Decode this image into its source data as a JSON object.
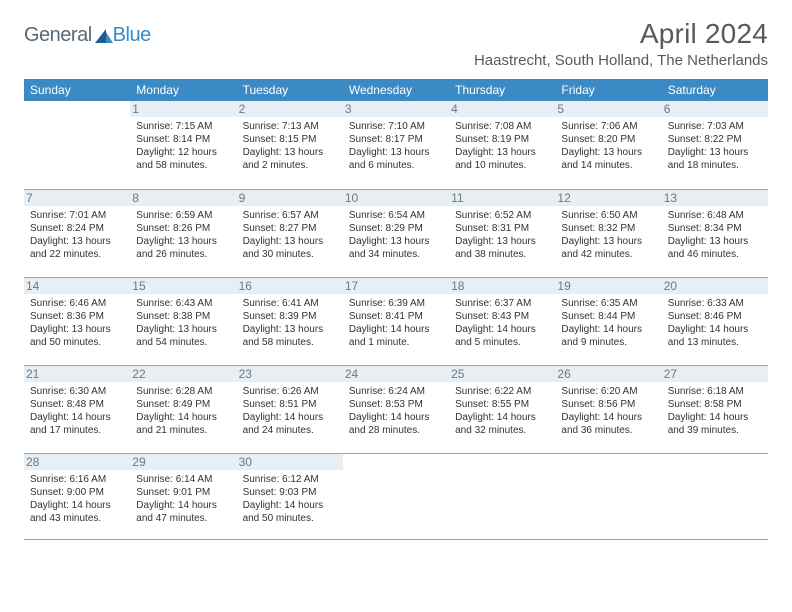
{
  "logo": {
    "textLeft": "General",
    "textRight": "Blue",
    "shapeColor": "#1c5c94"
  },
  "title": "April 2024",
  "location": "Haastrecht, South Holland, The Netherlands",
  "colors": {
    "headerBg": "#3b8ac4",
    "headerText": "#ffffff",
    "dayStripBg": "#e7eef4",
    "dayNumText": "#6c7a84",
    "cellBorder": "#8aa9bf",
    "bodyText": "#333333",
    "titleText": "#555b60"
  },
  "weekdays": [
    "Sunday",
    "Monday",
    "Tuesday",
    "Wednesday",
    "Thursday",
    "Friday",
    "Saturday"
  ],
  "weeks": [
    [
      {
        "n": "",
        "sunrise": "",
        "sunset": "",
        "daylight": ""
      },
      {
        "n": "1",
        "sunrise": "Sunrise: 7:15 AM",
        "sunset": "Sunset: 8:14 PM",
        "daylight": "Daylight: 12 hours and 58 minutes."
      },
      {
        "n": "2",
        "sunrise": "Sunrise: 7:13 AM",
        "sunset": "Sunset: 8:15 PM",
        "daylight": "Daylight: 13 hours and 2 minutes."
      },
      {
        "n": "3",
        "sunrise": "Sunrise: 7:10 AM",
        "sunset": "Sunset: 8:17 PM",
        "daylight": "Daylight: 13 hours and 6 minutes."
      },
      {
        "n": "4",
        "sunrise": "Sunrise: 7:08 AM",
        "sunset": "Sunset: 8:19 PM",
        "daylight": "Daylight: 13 hours and 10 minutes."
      },
      {
        "n": "5",
        "sunrise": "Sunrise: 7:06 AM",
        "sunset": "Sunset: 8:20 PM",
        "daylight": "Daylight: 13 hours and 14 minutes."
      },
      {
        "n": "6",
        "sunrise": "Sunrise: 7:03 AM",
        "sunset": "Sunset: 8:22 PM",
        "daylight": "Daylight: 13 hours and 18 minutes."
      }
    ],
    [
      {
        "n": "7",
        "sunrise": "Sunrise: 7:01 AM",
        "sunset": "Sunset: 8:24 PM",
        "daylight": "Daylight: 13 hours and 22 minutes."
      },
      {
        "n": "8",
        "sunrise": "Sunrise: 6:59 AM",
        "sunset": "Sunset: 8:26 PM",
        "daylight": "Daylight: 13 hours and 26 minutes."
      },
      {
        "n": "9",
        "sunrise": "Sunrise: 6:57 AM",
        "sunset": "Sunset: 8:27 PM",
        "daylight": "Daylight: 13 hours and 30 minutes."
      },
      {
        "n": "10",
        "sunrise": "Sunrise: 6:54 AM",
        "sunset": "Sunset: 8:29 PM",
        "daylight": "Daylight: 13 hours and 34 minutes."
      },
      {
        "n": "11",
        "sunrise": "Sunrise: 6:52 AM",
        "sunset": "Sunset: 8:31 PM",
        "daylight": "Daylight: 13 hours and 38 minutes."
      },
      {
        "n": "12",
        "sunrise": "Sunrise: 6:50 AM",
        "sunset": "Sunset: 8:32 PM",
        "daylight": "Daylight: 13 hours and 42 minutes."
      },
      {
        "n": "13",
        "sunrise": "Sunrise: 6:48 AM",
        "sunset": "Sunset: 8:34 PM",
        "daylight": "Daylight: 13 hours and 46 minutes."
      }
    ],
    [
      {
        "n": "14",
        "sunrise": "Sunrise: 6:46 AM",
        "sunset": "Sunset: 8:36 PM",
        "daylight": "Daylight: 13 hours and 50 minutes."
      },
      {
        "n": "15",
        "sunrise": "Sunrise: 6:43 AM",
        "sunset": "Sunset: 8:38 PM",
        "daylight": "Daylight: 13 hours and 54 minutes."
      },
      {
        "n": "16",
        "sunrise": "Sunrise: 6:41 AM",
        "sunset": "Sunset: 8:39 PM",
        "daylight": "Daylight: 13 hours and 58 minutes."
      },
      {
        "n": "17",
        "sunrise": "Sunrise: 6:39 AM",
        "sunset": "Sunset: 8:41 PM",
        "daylight": "Daylight: 14 hours and 1 minute."
      },
      {
        "n": "18",
        "sunrise": "Sunrise: 6:37 AM",
        "sunset": "Sunset: 8:43 PM",
        "daylight": "Daylight: 14 hours and 5 minutes."
      },
      {
        "n": "19",
        "sunrise": "Sunrise: 6:35 AM",
        "sunset": "Sunset: 8:44 PM",
        "daylight": "Daylight: 14 hours and 9 minutes."
      },
      {
        "n": "20",
        "sunrise": "Sunrise: 6:33 AM",
        "sunset": "Sunset: 8:46 PM",
        "daylight": "Daylight: 14 hours and 13 minutes."
      }
    ],
    [
      {
        "n": "21",
        "sunrise": "Sunrise: 6:30 AM",
        "sunset": "Sunset: 8:48 PM",
        "daylight": "Daylight: 14 hours and 17 minutes."
      },
      {
        "n": "22",
        "sunrise": "Sunrise: 6:28 AM",
        "sunset": "Sunset: 8:49 PM",
        "daylight": "Daylight: 14 hours and 21 minutes."
      },
      {
        "n": "23",
        "sunrise": "Sunrise: 6:26 AM",
        "sunset": "Sunset: 8:51 PM",
        "daylight": "Daylight: 14 hours and 24 minutes."
      },
      {
        "n": "24",
        "sunrise": "Sunrise: 6:24 AM",
        "sunset": "Sunset: 8:53 PM",
        "daylight": "Daylight: 14 hours and 28 minutes."
      },
      {
        "n": "25",
        "sunrise": "Sunrise: 6:22 AM",
        "sunset": "Sunset: 8:55 PM",
        "daylight": "Daylight: 14 hours and 32 minutes."
      },
      {
        "n": "26",
        "sunrise": "Sunrise: 6:20 AM",
        "sunset": "Sunset: 8:56 PM",
        "daylight": "Daylight: 14 hours and 36 minutes."
      },
      {
        "n": "27",
        "sunrise": "Sunrise: 6:18 AM",
        "sunset": "Sunset: 8:58 PM",
        "daylight": "Daylight: 14 hours and 39 minutes."
      }
    ],
    [
      {
        "n": "28",
        "sunrise": "Sunrise: 6:16 AM",
        "sunset": "Sunset: 9:00 PM",
        "daylight": "Daylight: 14 hours and 43 minutes."
      },
      {
        "n": "29",
        "sunrise": "Sunrise: 6:14 AM",
        "sunset": "Sunset: 9:01 PM",
        "daylight": "Daylight: 14 hours and 47 minutes."
      },
      {
        "n": "30",
        "sunrise": "Sunrise: 6:12 AM",
        "sunset": "Sunset: 9:03 PM",
        "daylight": "Daylight: 14 hours and 50 minutes."
      },
      {
        "n": "",
        "sunrise": "",
        "sunset": "",
        "daylight": ""
      },
      {
        "n": "",
        "sunrise": "",
        "sunset": "",
        "daylight": ""
      },
      {
        "n": "",
        "sunrise": "",
        "sunset": "",
        "daylight": ""
      },
      {
        "n": "",
        "sunrise": "",
        "sunset": "",
        "daylight": ""
      }
    ]
  ]
}
